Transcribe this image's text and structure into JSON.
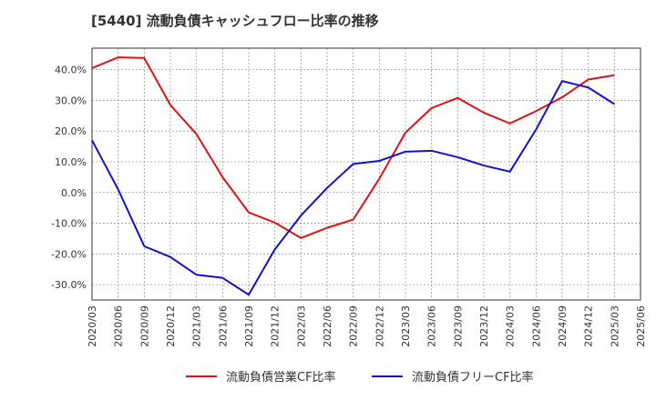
{
  "chart_data": {
    "type": "line",
    "title": "[5440]  流動負債キャッシュフロー比率の推移",
    "x": [
      "2020/03",
      "2020/06",
      "2020/09",
      "2020/12",
      "2021/03",
      "2021/06",
      "2021/09",
      "2021/12",
      "2022/03",
      "2022/06",
      "2022/09",
      "2022/12",
      "2023/03",
      "2023/06",
      "2023/09",
      "2023/12",
      "2024/03",
      "2024/06",
      "2024/09",
      "2024/12",
      "2025/03",
      "2025/06"
    ],
    "ylim": [
      -35,
      47
    ],
    "yticks": [
      -30,
      -20,
      -10,
      0,
      10,
      20,
      30,
      40
    ],
    "ytick_labels": [
      "-30.0%",
      "-20.0%",
      "-10.0%",
      "0.0%",
      "10.0%",
      "20.0%",
      "30.0%",
      "40.0%"
    ],
    "grid": true,
    "legend_position": "bottom",
    "series": [
      {
        "name": "流動負債営業CF比率",
        "color": "#dd1111",
        "values": [
          40.5,
          44.0,
          43.8,
          28.5,
          19.0,
          5.0,
          -6.5,
          -9.8,
          -14.8,
          -11.5,
          -8.8,
          4.5,
          19.5,
          27.5,
          30.8,
          26.0,
          22.5,
          26.5,
          31.0,
          36.8,
          38.2,
          null
        ]
      },
      {
        "name": "流動負債フリーCF比率",
        "color": "#1111cc",
        "values": [
          17.0,
          1.0,
          -17.5,
          -21.0,
          -26.8,
          -27.8,
          -33.3,
          -18.5,
          -7.5,
          1.5,
          9.3,
          10.3,
          13.3,
          13.6,
          11.5,
          8.8,
          6.8,
          20.5,
          36.3,
          34.2,
          28.8,
          null
        ]
      }
    ]
  }
}
